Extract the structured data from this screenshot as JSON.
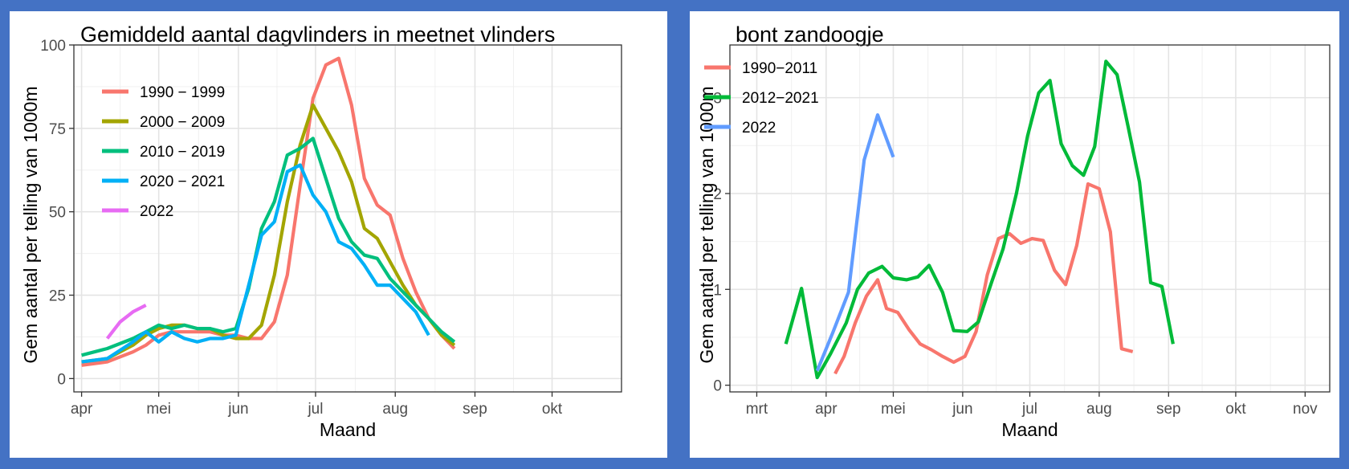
{
  "chart_data": [
    {
      "type": "line",
      "title": "Gemiddeld aantal dagvlinders in meetnet vlinders",
      "xlabel": "Maand",
      "ylabel": "Gem aantal per telling van 1000m",
      "x_unit": "day-of-year",
      "xlim": [
        88,
        301
      ],
      "ylim": [
        -4,
        100
      ],
      "x_ticks": [
        {
          "label": "apr",
          "value": 91
        },
        {
          "label": "mei",
          "value": 121
        },
        {
          "label": "jun",
          "value": 152
        },
        {
          "label": "jul",
          "value": 182
        },
        {
          "label": "aug",
          "value": 213
        },
        {
          "label": "sep",
          "value": 244
        },
        {
          "label": "okt",
          "value": 274
        }
      ],
      "y_ticks": [
        0,
        25,
        50,
        75,
        100
      ],
      "grid": true,
      "legend_position": "top-left",
      "series": [
        {
          "name": "1990 − 1999",
          "color": "#f8766d",
          "points": [
            [
              91,
              4
            ],
            [
              101,
              5
            ],
            [
              111,
              8
            ],
            [
              116,
              10
            ],
            [
              121,
              13
            ],
            [
              126,
              14
            ],
            [
              131,
              14
            ],
            [
              136,
              14
            ],
            [
              141,
              14
            ],
            [
              146,
              13
            ],
            [
              151,
              13
            ],
            [
              156,
              12
            ],
            [
              161,
              12
            ],
            [
              166,
              17
            ],
            [
              171,
              31
            ],
            [
              176,
              58
            ],
            [
              181,
              84
            ],
            [
              186,
              94
            ],
            [
              191,
              96
            ],
            [
              196,
              82
            ],
            [
              201,
              60
            ],
            [
              206,
              52
            ],
            [
              211,
              49
            ],
            [
              216,
              36
            ],
            [
              221,
              26
            ],
            [
              226,
              18
            ],
            [
              231,
              13
            ],
            [
              236,
              9
            ]
          ]
        },
        {
          "name": "2000 − 2009",
          "color": "#a3a500",
          "points": [
            [
              91,
              5
            ],
            [
              101,
              6
            ],
            [
              111,
              10
            ],
            [
              116,
              13
            ],
            [
              121,
              15
            ],
            [
              126,
              16
            ],
            [
              131,
              16
            ],
            [
              136,
              15
            ],
            [
              141,
              15
            ],
            [
              146,
              13
            ],
            [
              151,
              12
            ],
            [
              156,
              12
            ],
            [
              161,
              16
            ],
            [
              166,
              31
            ],
            [
              171,
              53
            ],
            [
              176,
              70
            ],
            [
              181,
              82
            ],
            [
              186,
              75
            ],
            [
              191,
              68
            ],
            [
              196,
              59
            ],
            [
              201,
              45
            ],
            [
              206,
              42
            ],
            [
              211,
              35
            ],
            [
              216,
              28
            ],
            [
              221,
              22
            ],
            [
              226,
              18
            ],
            [
              231,
              13
            ],
            [
              236,
              10
            ]
          ]
        },
        {
          "name": "2010 − 2019",
          "color": "#00bf7d",
          "points": [
            [
              91,
              7
            ],
            [
              101,
              9
            ],
            [
              111,
              12
            ],
            [
              116,
              14
            ],
            [
              121,
              16
            ],
            [
              126,
              15
            ],
            [
              131,
              16
            ],
            [
              136,
              15
            ],
            [
              141,
              15
            ],
            [
              146,
              14
            ],
            [
              151,
              15
            ],
            [
              156,
              27
            ],
            [
              161,
              45
            ],
            [
              166,
              53
            ],
            [
              171,
              67
            ],
            [
              176,
              69
            ],
            [
              181,
              72
            ],
            [
              186,
              60
            ],
            [
              191,
              48
            ],
            [
              196,
              41
            ],
            [
              201,
              37
            ],
            [
              206,
              36
            ],
            [
              211,
              30
            ],
            [
              216,
              26
            ],
            [
              221,
              22
            ],
            [
              226,
              18
            ],
            [
              231,
              14
            ],
            [
              236,
              11
            ]
          ]
        },
        {
          "name": "2020 − 2021",
          "color": "#00b0f6",
          "points": [
            [
              91,
              5
            ],
            [
              101,
              6
            ],
            [
              111,
              11
            ],
            [
              116,
              14
            ],
            [
              121,
              11
            ],
            [
              126,
              14
            ],
            [
              131,
              12
            ],
            [
              136,
              11
            ],
            [
              141,
              12
            ],
            [
              146,
              12
            ],
            [
              151,
              13
            ],
            [
              156,
              28
            ],
            [
              161,
              43
            ],
            [
              166,
              47
            ],
            [
              171,
              62
            ],
            [
              176,
              64
            ],
            [
              181,
              55
            ],
            [
              186,
              50
            ],
            [
              191,
              41
            ],
            [
              196,
              39
            ],
            [
              201,
              34
            ],
            [
              206,
              28
            ],
            [
              211,
              28
            ],
            [
              216,
              24
            ],
            [
              221,
              20
            ],
            [
              226,
              13
            ]
          ]
        },
        {
          "name": "2022",
          "color": "#e76bf3",
          "points": [
            [
              101,
              12
            ],
            [
              106,
              17
            ],
            [
              111,
              20
            ],
            [
              116,
              22
            ]
          ]
        }
      ]
    },
    {
      "type": "line",
      "title": "bont zandoogje",
      "xlabel": "Maand",
      "ylabel": "Gem aantal per telling van 1000m",
      "x_unit": "day-of-year",
      "xlim": [
        48,
        316
      ],
      "ylim": [
        -0.07,
        3.55
      ],
      "x_ticks": [
        {
          "label": "mrt",
          "value": 60
        },
        {
          "label": "apr",
          "value": 91
        },
        {
          "label": "mei",
          "value": 121
        },
        {
          "label": "jun",
          "value": 152
        },
        {
          "label": "jul",
          "value": 182
        },
        {
          "label": "aug",
          "value": 213
        },
        {
          "label": "sep",
          "value": 244
        },
        {
          "label": "okt",
          "value": 274
        },
        {
          "label": "nov",
          "value": 305
        }
      ],
      "y_ticks": [
        0,
        1,
        2,
        3
      ],
      "grid": true,
      "legend_position": "top-left",
      "series": [
        {
          "name": "1990−2011",
          "color": "#f8766d",
          "points": [
            [
              95,
              0.12
            ],
            [
              99,
              0.3
            ],
            [
              104,
              0.65
            ],
            [
              109,
              0.93
            ],
            [
              114,
              1.1
            ],
            [
              118,
              0.8
            ],
            [
              123,
              0.76
            ],
            [
              128,
              0.58
            ],
            [
              133,
              0.43
            ],
            [
              138,
              0.37
            ],
            [
              143,
              0.3
            ],
            [
              148,
              0.24
            ],
            [
              153,
              0.3
            ],
            [
              158,
              0.56
            ],
            [
              163,
              1.15
            ],
            [
              168,
              1.53
            ],
            [
              173,
              1.58
            ],
            [
              178,
              1.48
            ],
            [
              183,
              1.53
            ],
            [
              188,
              1.51
            ],
            [
              193,
              1.2
            ],
            [
              198,
              1.05
            ],
            [
              203,
              1.46
            ],
            [
              208,
              2.1
            ],
            [
              213,
              2.05
            ],
            [
              218,
              1.6
            ],
            [
              223,
              0.38
            ],
            [
              228,
              0.35
            ]
          ]
        },
        {
          "name": "2012−2021",
          "color": "#00ba38",
          "points": [
            [
              73,
              0.43
            ],
            [
              80,
              1.01
            ],
            [
              87,
              0.08
            ],
            [
              93,
              0.33
            ],
            [
              100,
              0.65
            ],
            [
              105,
              1.0
            ],
            [
              110,
              1.17
            ],
            [
              116,
              1.24
            ],
            [
              121,
              1.12
            ],
            [
              127,
              1.1
            ],
            [
              132,
              1.13
            ],
            [
              137,
              1.25
            ],
            [
              143,
              0.97
            ],
            [
              148,
              0.57
            ],
            [
              154,
              0.56
            ],
            [
              159,
              0.66
            ],
            [
              165,
              1.08
            ],
            [
              170,
              1.42
            ],
            [
              176,
              2.0
            ],
            [
              181,
              2.6
            ],
            [
              186,
              3.05
            ],
            [
              191,
              3.18
            ],
            [
              196,
              2.52
            ],
            [
              201,
              2.29
            ],
            [
              206,
              2.19
            ],
            [
              211,
              2.49
            ],
            [
              216,
              3.38
            ],
            [
              221,
              3.24
            ],
            [
              226,
              2.69
            ],
            [
              231,
              2.12
            ],
            [
              236,
              1.07
            ],
            [
              241,
              1.03
            ],
            [
              246,
              0.43
            ]
          ]
        },
        {
          "name": "2022",
          "color": "#619cff",
          "points": [
            [
              87,
              0.15
            ],
            [
              94,
              0.55
            ],
            [
              101,
              0.97
            ],
            [
              108,
              2.35
            ],
            [
              114,
              2.82
            ],
            [
              121,
              2.38
            ]
          ]
        }
      ]
    }
  ]
}
